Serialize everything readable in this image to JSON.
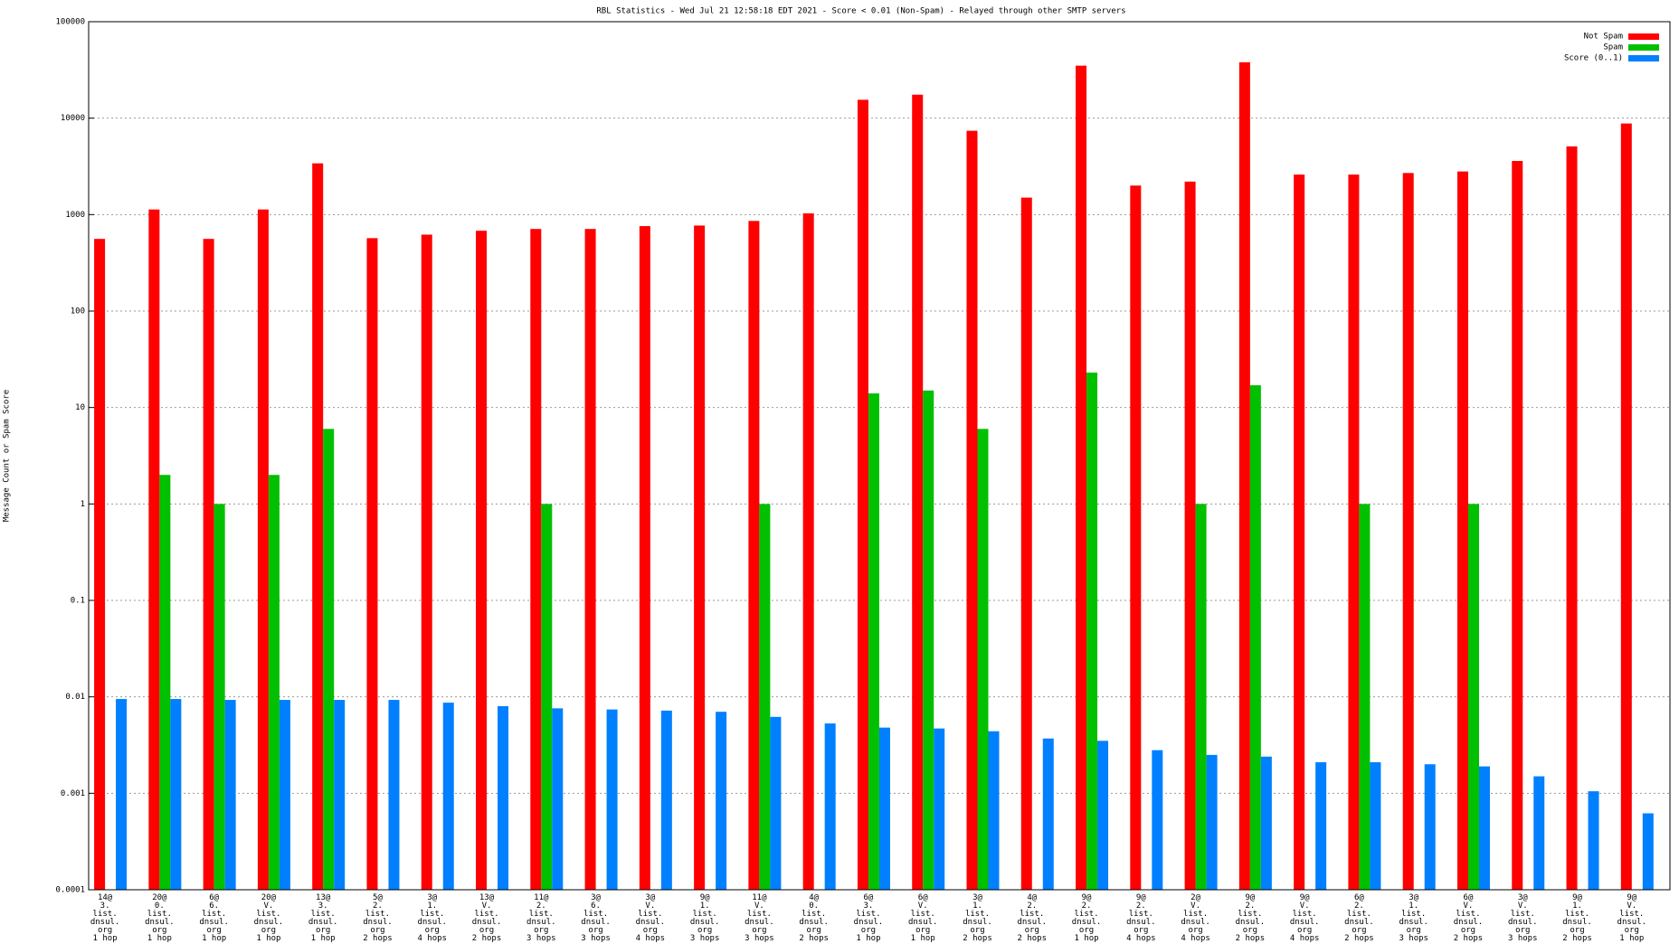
{
  "chart_data": {
    "type": "bar",
    "title": "RBL Statistics - Wed Jul 21 12:58:18 EDT 2021 - Score < 0.01 (Non-Spam) - Relayed through other SMTP servers",
    "y_label": "Message Count or Spam Score",
    "log_scale": true,
    "grid": true,
    "legend": "upper right",
    "categories": [
      "14@\n3.\nlist.\ndnsul.\norg\n1 hop",
      "20@\n0.\nlist.\ndnsul.\norg\n1 hop",
      "6@\n6.\nlist.\ndnsul.\norg\n1 hop",
      "20@\nV.\nlist.\ndnsul.\norg\n1 hop",
      "13@\n3.\nlist.\ndnsul.\norg\n1 hop",
      "5@\n2.\nlist.\ndnsul.\norg\n2 hops",
      "3@\n1.\nlist.\ndnsul.\norg\n4 hops",
      "13@\nV.\nlist.\ndnsul.\norg\n2 hops",
      "11@\n2.\nlist.\ndnsul.\norg\n3 hops",
      "3@\n6.\nlist.\ndnsul.\norg\n3 hops",
      "3@\nV.\nlist.\ndnsul.\norg\n4 hops",
      "9@\n1.\nlist.\ndnsul.\norg\n3 hops",
      "11@\nV.\nlist.\ndnsul.\norg\n3 hops",
      "4@\n0.\nlist.\ndnsul.\norg\n2 hops",
      "6@\n3.\nlist.\ndnsul.\norg\n1 hop",
      "6@\nV.\nlist.\ndnsul.\norg\n1 hop",
      "3@\n1.\nlist.\ndnsul.\norg\n2 hops",
      "4@\n2.\nlist.\ndnsul.\norg\n2 hops",
      "9@\n2.\nlist.\ndnsul.\norg\n1 hop",
      "9@\n2.\nlist.\ndnsul.\norg\n4 hops",
      "2@\nV.\nlist.\ndnsul.\norg\n4 hops",
      "9@\n2.\nlist.\ndnsul.\norg\n2 hops",
      "9@\nV.\nlist.\ndnsul.\norg\n4 hops",
      "6@\n2.\nlist.\ndnsul.\norg\n2 hops",
      "3@\n1.\nlist.\ndnsul.\norg\n3 hops",
      "6@\nV.\nlist.\ndnsul.\norg\n2 hops",
      "3@\nV.\nlist.\ndnsul.\norg\n3 hops",
      "9@\n1.\nlist.\ndnsul.\norg\n2 hops",
      "9@\nV.\nlist.\ndnsul.\norg\n1 hop"
    ],
    "series": [
      {
        "name": "Not Spam",
        "color": "#ff0000",
        "values": [
          560,
          1130,
          560,
          1130,
          3400,
          570,
          620,
          680,
          710,
          710,
          760,
          770,
          860,
          1030,
          15500,
          17500,
          7400,
          1500,
          35000,
          2000,
          2200,
          38000,
          2600,
          2600,
          2700,
          2800,
          3600,
          5100,
          8800
        ]
      },
      {
        "name": "Spam",
        "color": "#00c000",
        "values": [
          null,
          2,
          1,
          2,
          6,
          null,
          null,
          null,
          1,
          null,
          null,
          null,
          1,
          null,
          14,
          15,
          6,
          null,
          23,
          null,
          1,
          17,
          null,
          1,
          null,
          1,
          null,
          null,
          null
        ]
      },
      {
        "name": "Score (0..1)",
        "color": "#0080ff",
        "values": [
          0.0095,
          0.0095,
          0.0093,
          0.0093,
          0.0093,
          0.0093,
          0.0087,
          0.008,
          0.0076,
          0.0074,
          0.0072,
          0.007,
          0.0062,
          0.0053,
          0.0048,
          0.0047,
          0.0044,
          0.0037,
          0.0035,
          0.0028,
          0.0025,
          0.0024,
          0.0021,
          0.0021,
          0.002,
          0.0019,
          0.0015,
          0.00105,
          0.00062
        ]
      }
    ],
    "ylim": [
      0.0001,
      100000
    ],
    "yticks": [
      0.0001,
      0.001,
      0.01,
      0.1,
      1,
      10,
      100,
      1000,
      10000,
      100000
    ]
  }
}
